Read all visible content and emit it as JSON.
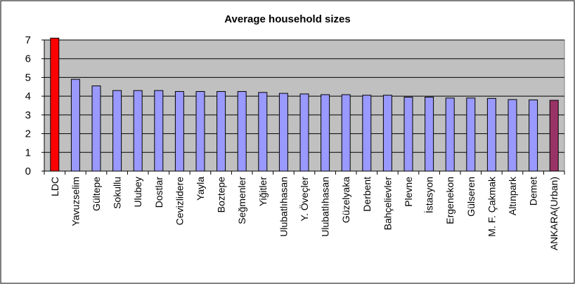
{
  "chart_data": {
    "type": "bar",
    "title": "Average household sizes",
    "xlabel": "",
    "ylabel": "",
    "ylim": [
      0,
      7
    ],
    "yticks": [
      0,
      1,
      2,
      3,
      4,
      5,
      6,
      7
    ],
    "grid": true,
    "legend": "none",
    "categories": [
      "LDC",
      "Yavuzselim",
      "Gültepe",
      "Sokullu",
      "Ulubey",
      "Dostlar",
      "Cevizlidere",
      "Yayla",
      "Boztepe",
      "Seğmenler",
      "Yiğitler",
      "Ulubatlıhasan",
      "Y. Öveçler",
      "Ulubatlıhasan",
      "Güzelyaka",
      "Derbent",
      "Bahçelievler",
      "Plevne",
      "İstasyon",
      "Ergenekon",
      "Gülseren",
      "M. F. Çakmak",
      "Altınpark",
      "Demet",
      "ANKARA(Urban)"
    ],
    "values": [
      7.1,
      4.9,
      4.55,
      4.3,
      4.3,
      4.3,
      4.25,
      4.25,
      4.25,
      4.25,
      4.2,
      4.15,
      4.12,
      4.08,
      4.08,
      4.05,
      4.05,
      3.95,
      3.95,
      3.9,
      3.9,
      3.88,
      3.82,
      3.8,
      3.78
    ],
    "bar_colors": {
      "default": "#9999ff",
      "LDC": "#ff0000",
      "ANKARA(Urban)": "#993366"
    },
    "plot_background": "#c0c0c0"
  }
}
